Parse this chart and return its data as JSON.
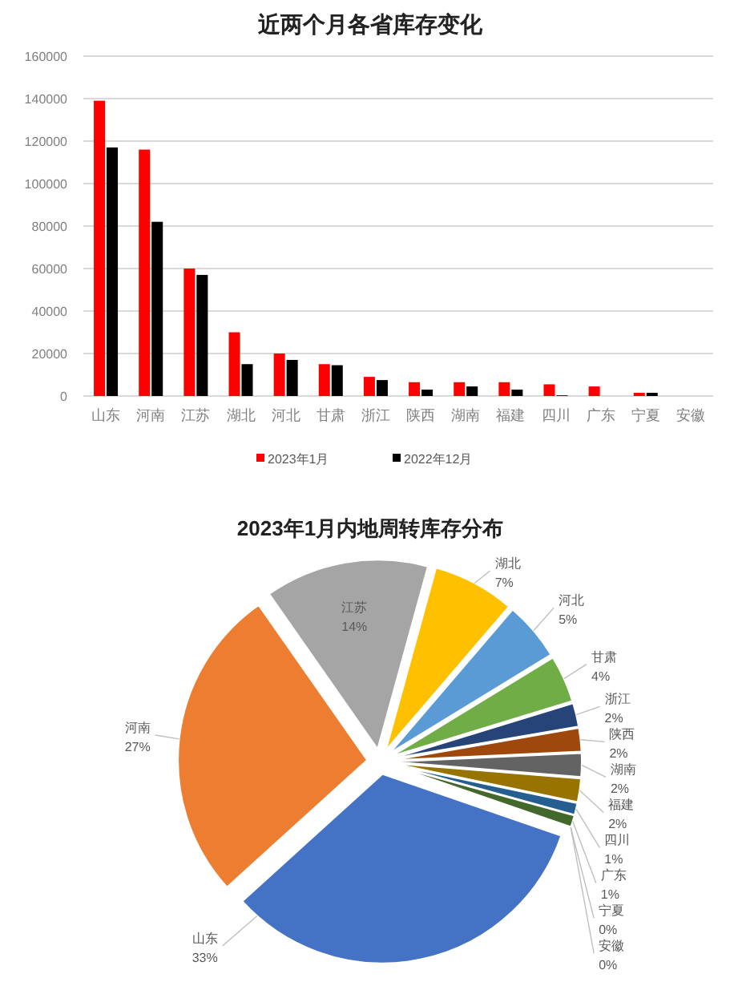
{
  "chart_data": [
    {
      "type": "bar",
      "title": "近两个月各省库存变化",
      "categories": [
        "山东",
        "河南",
        "江苏",
        "湖北",
        "河北",
        "甘肃",
        "浙江",
        "陕西",
        "湖南",
        "福建",
        "四川",
        "广东",
        "宁夏",
        "安徽"
      ],
      "series": [
        {
          "name": "2023年1月",
          "color": "#ff0000",
          "values": [
            139000,
            116000,
            60000,
            30000,
            20000,
            15000,
            9000,
            6500,
            6500,
            6500,
            5500,
            4500,
            1500,
            0
          ]
        },
        {
          "name": "2022年12月",
          "color": "#000000",
          "values": [
            117000,
            82000,
            57000,
            15000,
            17000,
            14500,
            7500,
            3000,
            4500,
            3000,
            300,
            0,
            1500,
            0
          ]
        }
      ],
      "ylim": [
        0,
        160000
      ],
      "yticks": [
        0,
        20000,
        40000,
        60000,
        80000,
        100000,
        120000,
        140000,
        160000
      ],
      "grid": "y",
      "legend": "bottom"
    },
    {
      "type": "pie",
      "title": "2023年1月内地周转库存分布",
      "categories": [
        "山东",
        "河南",
        "江苏",
        "湖北",
        "河北",
        "甘肃",
        "浙江",
        "陕西",
        "湖南",
        "福建",
        "四川",
        "广东",
        "宁夏",
        "安徽"
      ],
      "values": [
        33,
        27,
        14,
        7,
        5,
        4,
        2,
        2,
        2,
        2,
        1,
        1,
        0,
        0
      ],
      "value_labels": [
        "33%",
        "27%",
        "14%",
        "7%",
        "5%",
        "4%",
        "2%",
        "2%",
        "2%",
        "2%",
        "1%",
        "1%",
        "0%",
        "0%"
      ],
      "colors": [
        "#4472c4",
        "#ed7d31",
        "#a5a5a5",
        "#ffc000",
        "#5b9bd5",
        "#70ad47",
        "#264478",
        "#9e480e",
        "#636363",
        "#997300",
        "#255e91",
        "#43682b",
        "#698ed0",
        "#f1975a"
      ]
    }
  ]
}
